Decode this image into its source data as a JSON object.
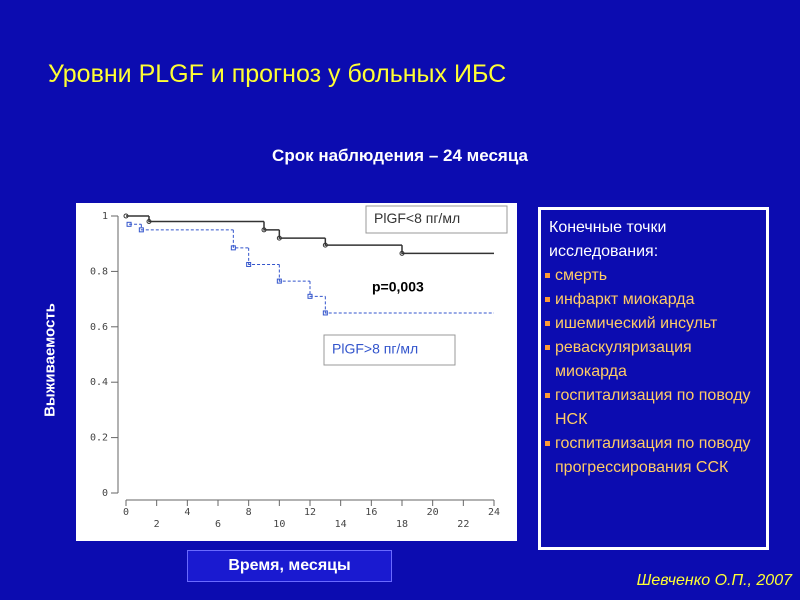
{
  "title": "Уровни PLGF и прогноз у больных ИБС",
  "chart_data": {
    "type": "step",
    "subtitle": "Срок наблюдения – 24 месяца",
    "y_label": "Выживаемость",
    "x_label": "Время, месяцы",
    "annotation": "p=0,003",
    "xlim": [
      0,
      24
    ],
    "xticks": [
      0,
      2,
      4,
      6,
      8,
      10,
      12,
      14,
      16,
      18,
      20,
      22,
      24
    ],
    "ylim": [
      0,
      1
    ],
    "yticks": [
      0,
      0.2,
      0.4,
      0.6,
      0.8,
      1
    ],
    "series": [
      {
        "name": "PlGF<8 пг/мл",
        "color": "#333333",
        "marker": "circle",
        "dashed": false,
        "x": [
          0,
          1.5,
          9,
          10,
          13,
          18,
          24
        ],
        "values": [
          1,
          0.98,
          0.95,
          0.92,
          0.895,
          0.865,
          0.865
        ]
      },
      {
        "name": "PlGF>8 пг/мл",
        "color": "#3355cc",
        "marker": "square",
        "dashed": true,
        "x": [
          0.2,
          1,
          7,
          8,
          10,
          12,
          13,
          24
        ],
        "values": [
          0.97,
          0.95,
          0.885,
          0.825,
          0.765,
          0.71,
          0.65,
          0.65
        ]
      }
    ]
  },
  "endpoints": {
    "title": "Конечные точки исследования:",
    "items": [
      "смерть",
      "инфаркт миокарда",
      "ишемический инсульт",
      "реваскуляризация миокарда",
      "госпитализация по поводу НСК",
      "госпитализация по поводу прогрессирования ССК"
    ]
  },
  "credit": "Шевченко О.П., 2007"
}
